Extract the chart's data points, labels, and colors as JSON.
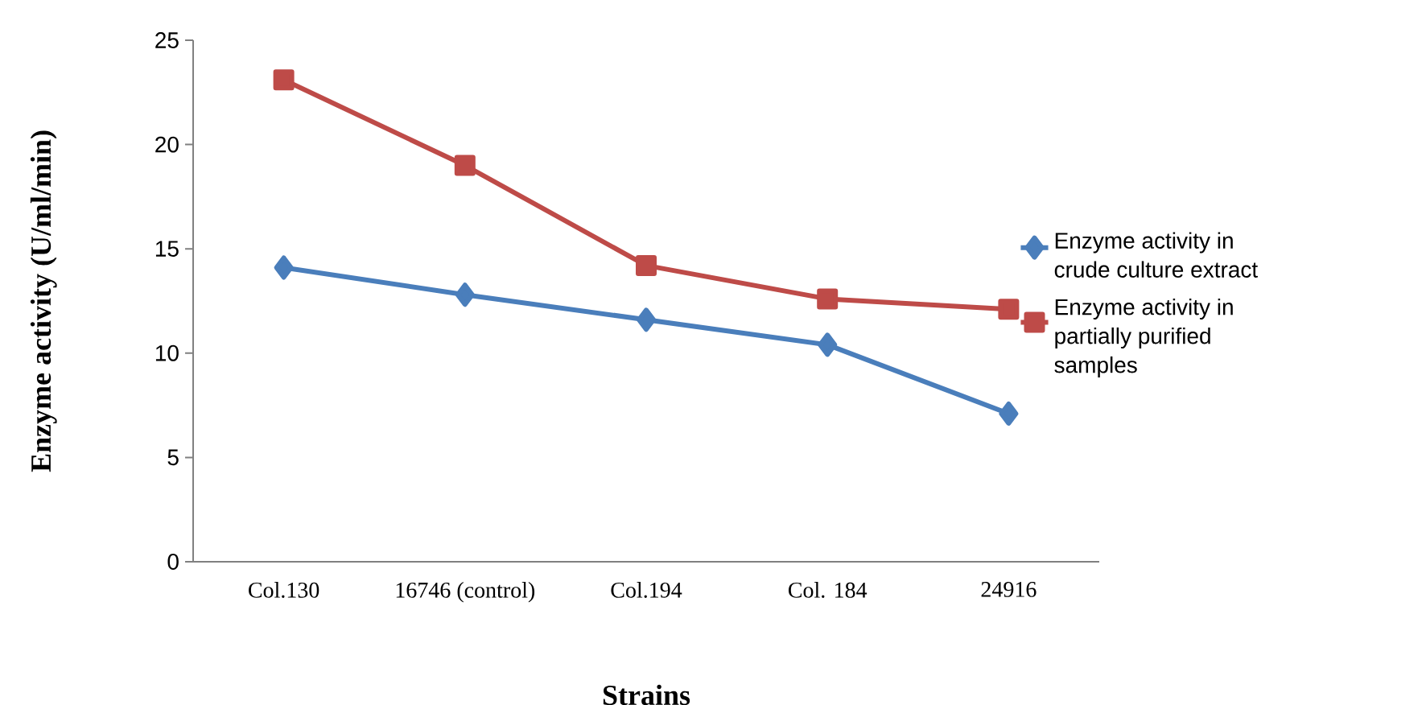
{
  "chart_data": {
    "type": "line",
    "xlabel": "Strains",
    "ylabel": "Enzyme activity (U/ml/min)",
    "categories": [
      "Col.130",
      "16746 (control)",
      "Col.194",
      "Col. 184",
      "24916"
    ],
    "series": [
      {
        "name": "Enzyme activity in crude culture extract",
        "color": "#4a7ebb",
        "marker": "diamond",
        "values": [
          14.1,
          12.8,
          11.6,
          10.4,
          7.1
        ]
      },
      {
        "name": "Enzyme activity in partially purified samples",
        "color": "#be4b48",
        "marker": "square",
        "values": [
          23.1,
          19.0,
          14.2,
          12.6,
          12.1
        ]
      }
    ],
    "ylim": [
      0,
      25
    ],
    "yticks": [
      0,
      5,
      10,
      15,
      20,
      25
    ],
    "grid": false,
    "legend": "right",
    "line_style": "solid"
  }
}
